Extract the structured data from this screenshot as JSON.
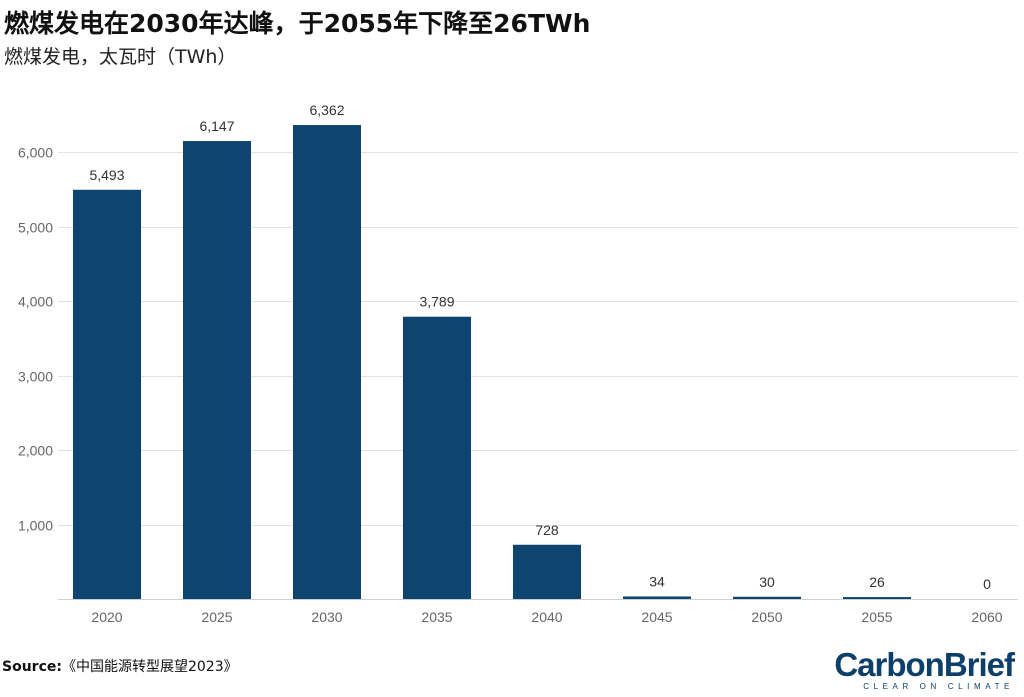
{
  "chart_data": {
    "type": "bar",
    "title": "燃煤发电在2030年达峰，于2055年下降至26TWh",
    "subtitle": "燃煤发电，太瓦时（TWh）",
    "categories": [
      "2020",
      "2025",
      "2030",
      "2035",
      "2040",
      "2045",
      "2050",
      "2055",
      "2060"
    ],
    "values": [
      5493,
      6147,
      6362,
      3789,
      728,
      34,
      30,
      26,
      0
    ],
    "data_labels": [
      "5,493",
      "6,147",
      "6,362",
      "3,789",
      "728",
      "34",
      "30",
      "26",
      "0"
    ],
    "yticks": [
      1000,
      2000,
      3000,
      4000,
      5000,
      6000
    ],
    "ytick_labels": [
      "1,000",
      "2,000",
      "3,000",
      "4,000",
      "5,000",
      "6,000"
    ],
    "ylim": [
      0,
      6500
    ],
    "grid": true,
    "legend": "none",
    "bar_color": "#0d4470"
  },
  "source": {
    "label": "Source:",
    "text": "《中国能源转型展望2023》"
  },
  "logo": {
    "main": "CarbonBrief",
    "sub": "CLEAR ON CLIMATE"
  }
}
